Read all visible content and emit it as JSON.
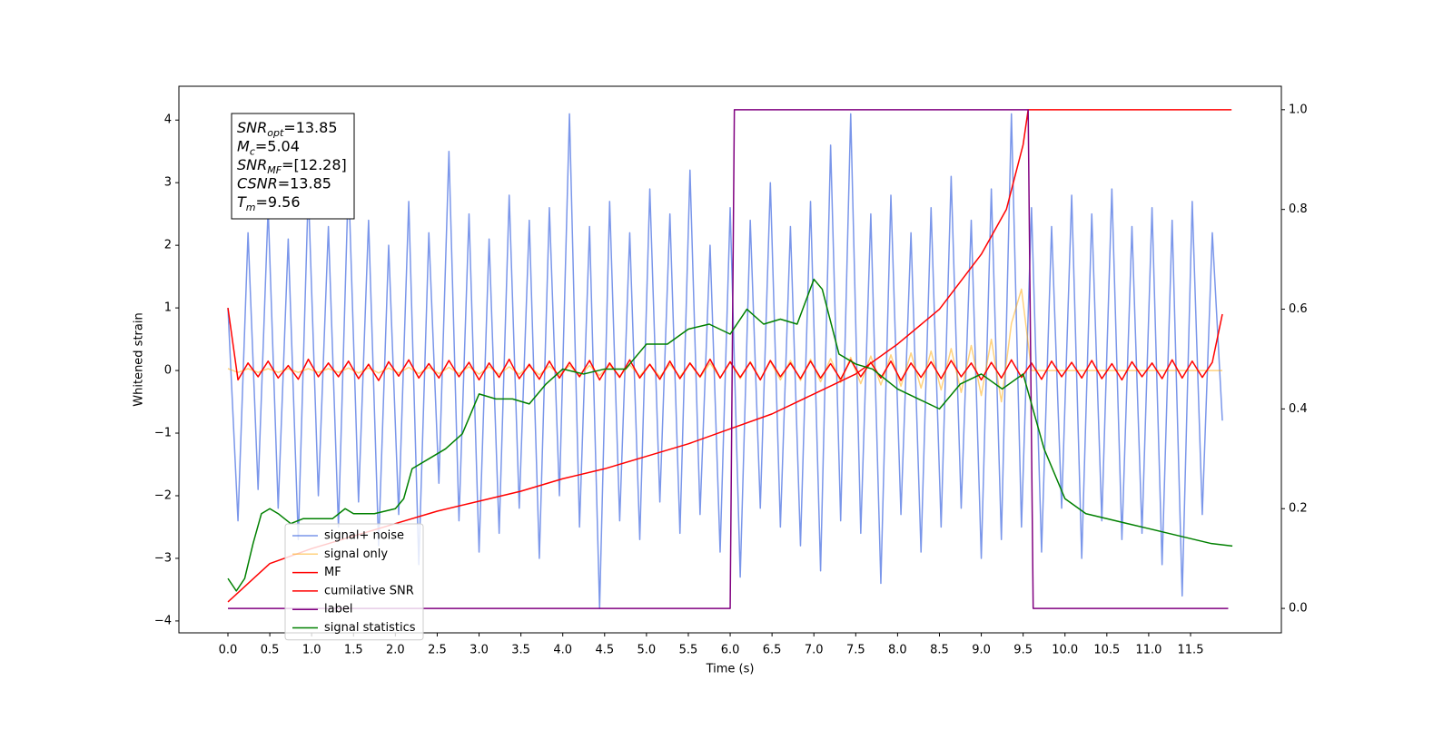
{
  "chart_data": {
    "type": "line",
    "xlabel": "Time (s)",
    "ylabel": "Whitened strain",
    "xlim": [
      -0.586,
      12.585
    ],
    "ylim": [
      -4.19,
      4.54
    ],
    "y2lim": [
      -0.049,
      1.047
    ],
    "grid": false,
    "legend": "lower left",
    "xticks": [
      {
        "value": 0,
        "label": "0.0"
      },
      {
        "value": 0.5,
        "label": "0.5"
      },
      {
        "value": 1,
        "label": "1.0"
      },
      {
        "value": 1.5,
        "label": "1.5"
      },
      {
        "value": 2,
        "label": "2.0"
      },
      {
        "value": 2.5,
        "label": "2.5"
      },
      {
        "value": 3,
        "label": "3.0"
      },
      {
        "value": 3.5,
        "label": "3.5"
      },
      {
        "value": 4,
        "label": "4.0"
      },
      {
        "value": 4.5,
        "label": "4.5"
      },
      {
        "value": 5,
        "label": "5.0"
      },
      {
        "value": 5.5,
        "label": "5.5"
      },
      {
        "value": 6,
        "label": "6.0"
      },
      {
        "value": 6.5,
        "label": "6.5"
      },
      {
        "value": 7,
        "label": "7.0"
      },
      {
        "value": 7.5,
        "label": "7.5"
      },
      {
        "value": 8,
        "label": "8.0"
      },
      {
        "value": 8.5,
        "label": "8.5"
      },
      {
        "value": 9,
        "label": "9.0"
      },
      {
        "value": 9.5,
        "label": "9.5"
      },
      {
        "value": 10,
        "label": "10.0"
      },
      {
        "value": 10.5,
        "label": "10.5"
      },
      {
        "value": 11,
        "label": "11.0"
      },
      {
        "value": 11.5,
        "label": "11.5"
      }
    ],
    "yticks": [
      {
        "value": -4,
        "label": "−4"
      },
      {
        "value": -3,
        "label": "−3"
      },
      {
        "value": -2,
        "label": "−2"
      },
      {
        "value": -1,
        "label": "−1"
      },
      0,
      1,
      2,
      3,
      4
    ],
    "y2ticks": [
      {
        "value": 0,
        "label": "0.0"
      },
      {
        "value": 0.2,
        "label": "0.2"
      },
      {
        "value": 0.4,
        "label": "0.4"
      },
      {
        "value": 0.6,
        "label": "0.6"
      },
      {
        "value": 0.8,
        "label": "0.8"
      },
      {
        "value": 1,
        "label": "1.0"
      }
    ],
    "annotation": [
      {
        "symbol": "SNR",
        "sub": "opt",
        "text": "=13.85"
      },
      {
        "symbol": "M",
        "sub": "c",
        "text": "=5.04"
      },
      {
        "symbol": "SNR",
        "sub": "MF",
        "text": "=[12.28]"
      },
      {
        "symbol": "CSNR",
        "text": "=13.85"
      },
      {
        "symbol": "T",
        "sub": "m",
        "text": "=9.56"
      }
    ],
    "x": [
      0,
      0.12,
      0.24,
      0.36,
      0.48,
      0.6,
      0.72,
      0.84,
      0.96,
      1.08,
      1.2,
      1.32,
      1.44,
      1.56,
      1.68,
      1.8,
      1.92,
      2.04,
      2.16,
      2.28,
      2.4,
      2.52,
      2.64,
      2.76,
      2.88,
      3,
      3.12,
      3.24,
      3.36,
      3.48,
      3.6,
      3.72,
      3.84,
      3.96,
      4.08,
      4.2,
      4.32,
      4.44,
      4.56,
      4.68,
      4.8,
      4.92,
      5.04,
      5.16,
      5.28,
      5.4,
      5.52,
      5.64,
      5.76,
      5.88,
      6,
      6.12,
      6.24,
      6.36,
      6.48,
      6.6,
      6.72,
      6.84,
      6.96,
      7.08,
      7.2,
      7.32,
      7.44,
      7.56,
      7.68,
      7.8,
      7.92,
      8.04,
      8.16,
      8.28,
      8.4,
      8.52,
      8.64,
      8.76,
      8.88,
      9,
      9.12,
      9.24,
      9.36,
      9.48,
      9.6,
      9.72,
      9.84,
      9.96,
      10.08,
      10.2,
      10.32,
      10.44,
      10.56,
      10.68,
      10.8,
      10.92,
      11.04,
      11.16,
      11.28,
      11.4,
      11.52,
      11.64,
      11.76,
      11.88
    ],
    "series": [
      {
        "name": "signal+ noise",
        "color": "#4169e1",
        "alpha": 0.7,
        "values": [
          1.0,
          -2.4,
          2.2,
          -1.9,
          2.6,
          -2.2,
          2.1,
          -2.7,
          2.9,
          -2.0,
          2.3,
          -2.5,
          3.1,
          -2.1,
          2.4,
          -2.8,
          2.0,
          -2.3,
          2.7,
          -3.1,
          2.2,
          -1.8,
          3.5,
          -2.4,
          2.5,
          -2.9,
          2.1,
          -2.6,
          2.8,
          -2.2,
          2.4,
          -3.0,
          2.6,
          -2.0,
          4.1,
          -2.5,
          2.3,
          -3.8,
          2.7,
          -2.4,
          2.2,
          -2.7,
          2.9,
          -2.1,
          2.5,
          -2.6,
          3.2,
          -2.3,
          2.0,
          -2.9,
          2.6,
          -3.3,
          2.4,
          -2.2,
          3.0,
          -2.5,
          2.3,
          -2.8,
          2.7,
          -3.2,
          3.6,
          -2.4,
          4.1,
          -2.6,
          2.5,
          -3.4,
          2.8,
          -2.3,
          2.2,
          -2.9,
          2.6,
          -2.5,
          3.1,
          -2.2,
          2.4,
          -3.0,
          2.9,
          -2.7,
          4.1,
          -2.5,
          2.6,
          -2.9,
          2.3,
          -2.2,
          2.8,
          -3.0,
          2.5,
          -2.4,
          2.9,
          -2.7,
          2.3,
          -2.6,
          2.6,
          -3.1,
          2.4,
          -3.6,
          2.7,
          -2.3,
          2.2,
          -0.8
        ]
      },
      {
        "name": "signal only",
        "color": "#ffa500",
        "alpha": 0.5,
        "values": [
          0.03,
          -0.03,
          0.03,
          -0.03,
          0.03,
          -0.03,
          0.03,
          -0.03,
          0.03,
          -0.03,
          0.03,
          -0.03,
          0.04,
          -0.04,
          0.04,
          -0.04,
          0.04,
          -0.04,
          0.05,
          -0.05,
          0.05,
          -0.05,
          0.05,
          -0.05,
          0.06,
          -0.06,
          0.06,
          -0.06,
          0.06,
          -0.06,
          0.07,
          -0.07,
          0.07,
          -0.07,
          0.08,
          -0.08,
          0.08,
          -0.08,
          0.09,
          -0.09,
          0.09,
          -0.09,
          0.1,
          -0.1,
          0.1,
          -0.1,
          0.11,
          -0.11,
          0.12,
          -0.12,
          0.13,
          -0.13,
          0.14,
          -0.14,
          0.15,
          -0.15,
          0.16,
          -0.16,
          0.18,
          -0.18,
          0.19,
          -0.19,
          0.21,
          -0.21,
          0.23,
          -0.23,
          0.25,
          -0.25,
          0.28,
          -0.28,
          0.31,
          -0.31,
          0.35,
          -0.35,
          0.4,
          -0.4,
          0.5,
          -0.5,
          0.75,
          1.3,
          0,
          0,
          0,
          0,
          0,
          0,
          0,
          0,
          0,
          0,
          0,
          0,
          0,
          0,
          0,
          0,
          0,
          0,
          0,
          0
        ]
      },
      {
        "name": "MF",
        "color": "#ff0000",
        "alpha": 1,
        "values": [
          1.0,
          -0.15,
          0.12,
          -0.1,
          0.15,
          -0.12,
          0.08,
          -0.14,
          0.18,
          -0.1,
          0.12,
          -0.1,
          0.15,
          -0.13,
          0.1,
          -0.16,
          0.14,
          -0.09,
          0.17,
          -0.12,
          0.11,
          -0.12,
          0.16,
          -0.1,
          0.13,
          -0.15,
          0.12,
          -0.11,
          0.18,
          -0.13,
          0.1,
          -0.14,
          0.15,
          -0.12,
          0.13,
          -0.1,
          0.16,
          -0.15,
          0.12,
          -0.11,
          0.17,
          -0.12,
          0.1,
          -0.14,
          0.15,
          -0.13,
          0.12,
          -0.1,
          0.18,
          -0.12,
          0.14,
          -0.11,
          0.13,
          -0.15,
          0.16,
          -0.1,
          0.12,
          -0.13,
          0.15,
          -0.12,
          0.11,
          -0.14,
          0.17,
          -0.1,
          0.13,
          -0.12,
          0.15,
          -0.16,
          0.12,
          -0.11,
          0.14,
          -0.13,
          0.16,
          -0.1,
          0.12,
          -0.15,
          0.13,
          -0.12,
          0.17,
          -0.11,
          0.12,
          -0.14,
          0.15,
          -0.1,
          0.13,
          -0.12,
          0.16,
          -0.13,
          0.11,
          -0.15,
          0.14,
          -0.1,
          0.12,
          -0.13,
          0.17,
          -0.12,
          0.15,
          -0.11,
          0.13,
          0.9
        ]
      },
      {
        "name": "cumilative SNR",
        "color": "#ff0000",
        "alpha": 1,
        "axis": "y2",
        "x": [
          0,
          0.5,
          1,
          1.5,
          2,
          2.5,
          3,
          3.5,
          4,
          4.5,
          5,
          5.5,
          6,
          6.5,
          7,
          7.5,
          8,
          8.5,
          9,
          9.3,
          9.5,
          9.56,
          11.99
        ],
        "values": [
          0.013,
          0.09,
          0.12,
          0.145,
          0.17,
          0.195,
          0.215,
          0.235,
          0.26,
          0.28,
          0.305,
          0.33,
          0.36,
          0.39,
          0.43,
          0.47,
          0.53,
          0.6,
          0.71,
          0.8,
          0.93,
          1.0,
          1.0
        ]
      },
      {
        "name": "label",
        "color": "#800080",
        "alpha": 1,
        "axis": "y2",
        "x": [
          0,
          6.0,
          6.05,
          9.56,
          9.62,
          11.95
        ],
        "values": [
          0,
          0,
          1,
          1,
          0,
          0
        ]
      },
      {
        "name": "signal statistics",
        "color": "#008000",
        "alpha": 1,
        "axis": "y2",
        "x": [
          0,
          0.1,
          0.2,
          0.3,
          0.4,
          0.5,
          0.6,
          0.75,
          0.9,
          1.0,
          1.25,
          1.4,
          1.5,
          1.75,
          2.0,
          2.1,
          2.2,
          2.4,
          2.6,
          2.8,
          3.0,
          3.2,
          3.4,
          3.6,
          3.8,
          4.0,
          4.25,
          4.5,
          4.75,
          5.0,
          5.25,
          5.5,
          5.75,
          6.0,
          6.2,
          6.4,
          6.6,
          6.8,
          7.0,
          7.1,
          7.3,
          7.5,
          7.7,
          8.0,
          8.25,
          8.5,
          8.75,
          9.0,
          9.25,
          9.5,
          9.75,
          10.0,
          10.25,
          10.5,
          10.75,
          11.0,
          11.25,
          11.5,
          11.75,
          12.0
        ],
        "values": [
          0.06,
          0.035,
          0.06,
          0.13,
          0.19,
          0.2,
          0.19,
          0.17,
          0.18,
          0.18,
          0.18,
          0.2,
          0.19,
          0.19,
          0.2,
          0.22,
          0.28,
          0.3,
          0.32,
          0.35,
          0.43,
          0.42,
          0.42,
          0.41,
          0.45,
          0.48,
          0.47,
          0.48,
          0.48,
          0.53,
          0.53,
          0.56,
          0.57,
          0.55,
          0.6,
          0.57,
          0.58,
          0.57,
          0.66,
          0.64,
          0.51,
          0.49,
          0.48,
          0.44,
          0.42,
          0.4,
          0.45,
          0.47,
          0.44,
          0.47,
          0.32,
          0.22,
          0.19,
          0.18,
          0.17,
          0.16,
          0.15,
          0.14,
          0.13,
          0.125
        ]
      }
    ]
  }
}
